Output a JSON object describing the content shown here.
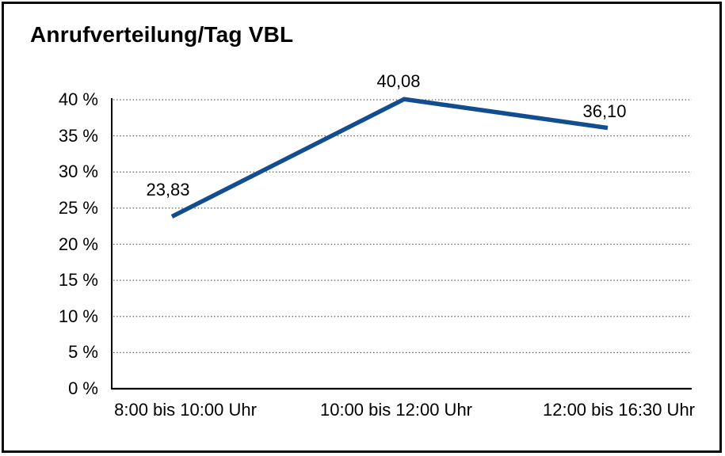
{
  "chart_data": {
    "type": "line",
    "title": "Anrufverteilung/Tag VBL",
    "categories": [
      "8:00 bis 10:00 Uhr",
      "10:00 bis 12:00 Uhr",
      "12:00 bis 16:30 Uhr"
    ],
    "values": [
      23.83,
      40.08,
      36.1
    ],
    "value_labels": [
      "23,83",
      "40,08",
      "36,10"
    ],
    "series": [
      {
        "name": "Anrufverteilung/Tag VBL",
        "values": [
          23.83,
          40.08,
          36.1
        ]
      }
    ],
    "xlabel": "",
    "ylabel": "",
    "ylim": [
      0,
      40
    ],
    "ytick_step": 5,
    "ytick_labels": [
      "0 %",
      "5 %",
      "10 %",
      "15 %",
      "20 %",
      "25 %",
      "30 %",
      "35 %",
      "40 %"
    ],
    "grid": "horizontal-dotted",
    "legend_position": "none"
  },
  "colors": {
    "line": "#124e8f",
    "axis": "#000000",
    "grid": "#5f5f5f",
    "frame": "#0a0a0a",
    "background": "#ffffff",
    "text": "#000000"
  }
}
